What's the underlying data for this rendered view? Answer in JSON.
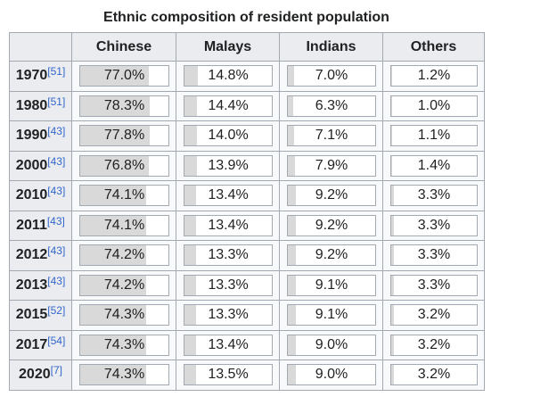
{
  "caption": "Ethnic composition of resident population",
  "table": {
    "headers": [
      "Chinese",
      "Malays",
      "Indians",
      "Others"
    ],
    "rows": [
      {
        "year": "1970",
        "ref": "[51]",
        "cells": [
          {
            "value": 77.0,
            "label": "77.0%"
          },
          {
            "value": 14.8,
            "label": "14.8%"
          },
          {
            "value": 7.0,
            "label": "7.0%"
          },
          {
            "value": 1.2,
            "label": "1.2%"
          }
        ]
      },
      {
        "year": "1980",
        "ref": "[51]",
        "cells": [
          {
            "value": 78.3,
            "label": "78.3%"
          },
          {
            "value": 14.4,
            "label": "14.4%"
          },
          {
            "value": 6.3,
            "label": "6.3%"
          },
          {
            "value": 1.0,
            "label": "1.0%"
          }
        ]
      },
      {
        "year": "1990",
        "ref": "[43]",
        "cells": [
          {
            "value": 77.8,
            "label": "77.8%"
          },
          {
            "value": 14.0,
            "label": "14.0%"
          },
          {
            "value": 7.1,
            "label": "7.1%"
          },
          {
            "value": 1.1,
            "label": "1.1%"
          }
        ]
      },
      {
        "year": "2000",
        "ref": "[43]",
        "cells": [
          {
            "value": 76.8,
            "label": "76.8%"
          },
          {
            "value": 13.9,
            "label": "13.9%"
          },
          {
            "value": 7.9,
            "label": "7.9%"
          },
          {
            "value": 1.4,
            "label": "1.4%"
          }
        ]
      },
      {
        "year": "2010",
        "ref": "[43]",
        "cells": [
          {
            "value": 74.1,
            "label": "74.1%"
          },
          {
            "value": 13.4,
            "label": "13.4%"
          },
          {
            "value": 9.2,
            "label": "9.2%"
          },
          {
            "value": 3.3,
            "label": "3.3%"
          }
        ]
      },
      {
        "year": "2011",
        "ref": "[43]",
        "cells": [
          {
            "value": 74.1,
            "label": "74.1%"
          },
          {
            "value": 13.4,
            "label": "13.4%"
          },
          {
            "value": 9.2,
            "label": "9.2%"
          },
          {
            "value": 3.3,
            "label": "3.3%"
          }
        ]
      },
      {
        "year": "2012",
        "ref": "[43]",
        "cells": [
          {
            "value": 74.2,
            "label": "74.2%"
          },
          {
            "value": 13.3,
            "label": "13.3%"
          },
          {
            "value": 9.2,
            "label": "9.2%"
          },
          {
            "value": 3.3,
            "label": "3.3%"
          }
        ]
      },
      {
        "year": "2013",
        "ref": "[43]",
        "cells": [
          {
            "value": 74.2,
            "label": "74.2%"
          },
          {
            "value": 13.3,
            "label": "13.3%"
          },
          {
            "value": 9.1,
            "label": "9.1%"
          },
          {
            "value": 3.3,
            "label": "3.3%"
          }
        ]
      },
      {
        "year": "2015",
        "ref": "[52]",
        "cells": [
          {
            "value": 74.3,
            "label": "74.3%"
          },
          {
            "value": 13.3,
            "label": "13.3%"
          },
          {
            "value": 9.1,
            "label": "9.1%"
          },
          {
            "value": 3.2,
            "label": "3.2%"
          }
        ]
      },
      {
        "year": "2017",
        "ref": "[54]",
        "cells": [
          {
            "value": 74.3,
            "label": "74.3%"
          },
          {
            "value": 13.4,
            "label": "13.4%"
          },
          {
            "value": 9.0,
            "label": "9.0%"
          },
          {
            "value": 3.2,
            "label": "3.2%"
          }
        ]
      },
      {
        "year": "2020",
        "ref": "[7]",
        "cells": [
          {
            "value": 74.3,
            "label": "74.3%"
          },
          {
            "value": 13.5,
            "label": "13.5%"
          },
          {
            "value": 9.0,
            "label": "9.0%"
          },
          {
            "value": 3.2,
            "label": "3.2%"
          }
        ]
      }
    ]
  }
}
